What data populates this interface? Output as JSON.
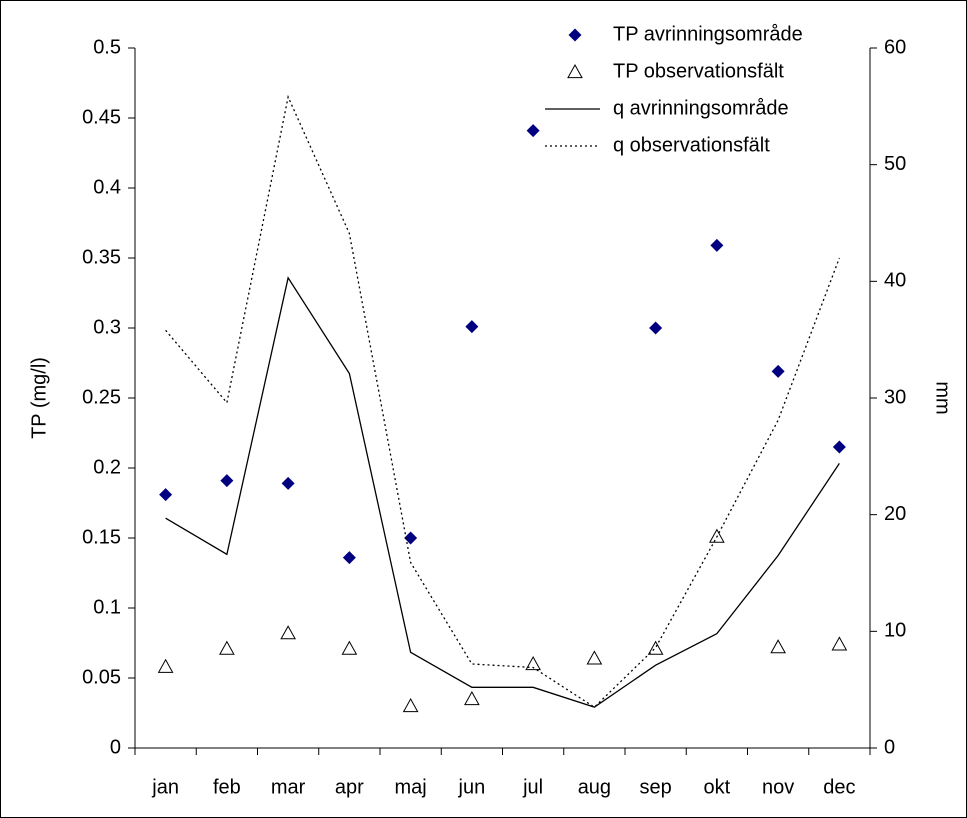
{
  "chart_data": {
    "type": "line",
    "categories": [
      "jan",
      "feb",
      "mar",
      "apr",
      "maj",
      "jun",
      "jul",
      "aug",
      "sep",
      "okt",
      "nov",
      "dec"
    ],
    "ylabel": "TP (mg/l)",
    "y2label": "mm",
    "ylim": [
      0,
      0.5
    ],
    "yticks": [
      0,
      0.05,
      0.1,
      0.15,
      0.2,
      0.25,
      0.3,
      0.35,
      0.4,
      0.45,
      0.5
    ],
    "y2lim": [
      0,
      60
    ],
    "y2ticks": [
      0,
      10,
      20,
      30,
      40,
      50,
      60
    ],
    "legend": "upper right",
    "series": [
      {
        "name": "TP avrinningsområde",
        "color": "#000080",
        "marker": "diamond",
        "values": [
          0.181,
          0.191,
          0.189,
          0.136,
          0.15,
          0.301,
          0.441,
          null,
          0.3,
          0.359,
          0.269,
          0.215
        ]
      },
      {
        "name": "TP observationsfält",
        "color": "#000000",
        "marker": "triangle",
        "values": [
          0.058,
          0.071,
          0.082,
          0.071,
          0.03,
          0.035,
          0.06,
          0.064,
          0.071,
          0.151,
          0.072,
          0.074
        ]
      },
      {
        "name": "q avrinningsområde",
        "color": "#000000",
        "line": "solid",
        "axis": "y2",
        "values": [
          19.7,
          16.6,
          40.3,
          32.1,
          8.2,
          5.2,
          5.2,
          3.5,
          7.1,
          9.8,
          16.5,
          24.4
        ]
      },
      {
        "name": "q observationsfält",
        "color": "#000000",
        "line": "dotted",
        "axis": "y2",
        "values": [
          35.8,
          29.6,
          55.8,
          44.1,
          15.9,
          7.2,
          6.9,
          3.5,
          8.6,
          18.1,
          28.1,
          42.0
        ]
      }
    ]
  }
}
